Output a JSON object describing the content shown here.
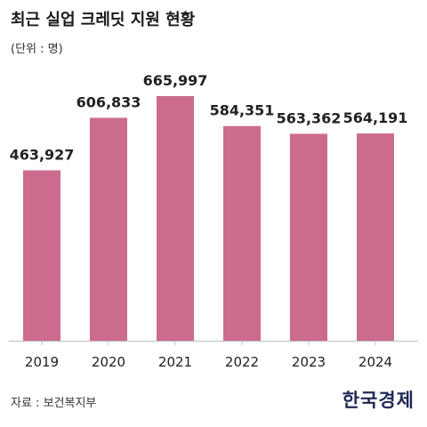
{
  "header": {
    "title": "최근 실업 크레딧 지원 현황",
    "unit": "(단위 : 명)"
  },
  "footer": {
    "source": "자료 : 보건복지부",
    "logo_text": "한국경제"
  },
  "colors": {
    "bar": "#cc6b8e",
    "axis": "#bdbdbd",
    "label": "#222222"
  },
  "chart_data": {
    "type": "bar",
    "title": "최근 실업 크레딧 지원 현황",
    "xlabel": "",
    "ylabel": "",
    "unit": "(단위 : 명)",
    "categories": [
      "2019",
      "2020",
      "2021",
      "2022",
      "2023",
      "2024"
    ],
    "values": [
      463927,
      606833,
      665997,
      584351,
      563362,
      564191
    ],
    "value_labels": [
      "463,927",
      "606,833",
      "665,997",
      "584,351",
      "563,362",
      "564,191"
    ],
    "ylim": [
      0,
      665997
    ],
    "grid": false,
    "legend": "none"
  }
}
